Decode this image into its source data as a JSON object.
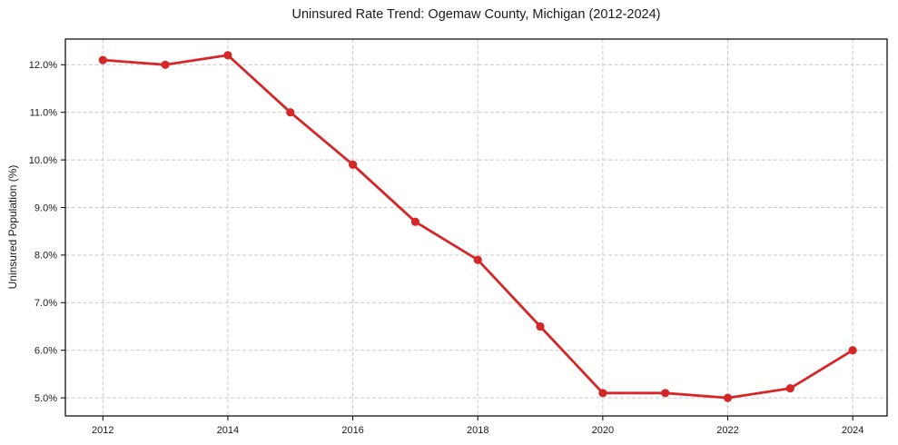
{
  "chart_data": {
    "type": "line",
    "title": "Uninsured Rate Trend: Ogemaw County, Michigan (2012-2024)",
    "xlabel": "",
    "ylabel": "Uninsured Population (%)",
    "x": [
      2012,
      2013,
      2014,
      2015,
      2016,
      2017,
      2018,
      2019,
      2020,
      2021,
      2022,
      2023,
      2024
    ],
    "values": [
      12.1,
      12.0,
      12.2,
      11.0,
      9.9,
      8.7,
      7.9,
      6.5,
      5.1,
      5.1,
      5.0,
      5.2,
      6.0
    ],
    "xlim": [
      2011.4,
      2024.55
    ],
    "ylim": [
      4.62,
      12.54
    ],
    "xticks": [
      2012,
      2014,
      2016,
      2018,
      2020,
      2022,
      2024
    ],
    "x_tick_labels": [
      "2012",
      "2014",
      "2016",
      "2018",
      "2020",
      "2022",
      "2024"
    ],
    "yticks": [
      5,
      6,
      7,
      8,
      9,
      10,
      11,
      12
    ],
    "y_tick_labels": [
      "5.0%",
      "6.0%",
      "7.0%",
      "8.0%",
      "9.0%",
      "10.0%",
      "11.0%",
      "12.0%"
    ],
    "grid": true,
    "grid_style": "dashed",
    "legend": false,
    "marker": "circle",
    "colors": {
      "line": "#d62728",
      "marker": "#d62728",
      "grid": "#c9c9c9",
      "axis": "#000000",
      "background": "#ffffff",
      "text": "#1a1a1a"
    }
  }
}
